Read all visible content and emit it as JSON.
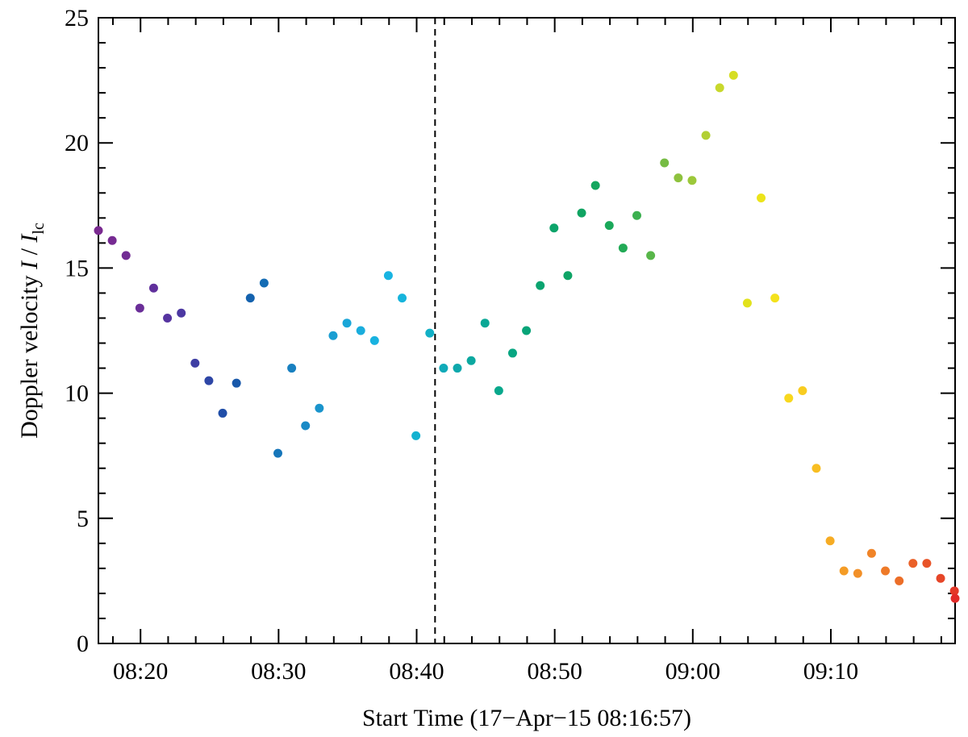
{
  "chart_data": {
    "type": "scatter",
    "xlabel": "Start Time (17−Apr−15 08:16:57)",
    "ylabel_prefix": "Doppler velocity",
    "ylabel_italic_a": "I",
    "ylabel_sep": " / ",
    "ylabel_italic_b": "I",
    "ylabel_sub": "lc",
    "xlim": [
      "08:16:57",
      "09:19:00"
    ],
    "ylim": [
      0,
      25
    ],
    "x_ticks": [
      "08:20",
      "08:30",
      "08:40",
      "08:50",
      "09:00",
      "09:10"
    ],
    "y_ticks": [
      0,
      5,
      10,
      15,
      20,
      25
    ],
    "grid": false,
    "marker_line_time": "08:41:20",
    "points": [
      {
        "t": "08:16:57",
        "y": 16.5,
        "color": "#7a2a90"
      },
      {
        "t": "08:17:57",
        "y": 16.1,
        "color": "#762a92"
      },
      {
        "t": "08:18:57",
        "y": 15.5,
        "color": "#722c94"
      },
      {
        "t": "08:19:57",
        "y": 13.4,
        "color": "#6a2e98"
      },
      {
        "t": "08:20:57",
        "y": 14.2,
        "color": "#60309c"
      },
      {
        "t": "08:21:57",
        "y": 13.0,
        "color": "#5634a0"
      },
      {
        "t": "08:22:57",
        "y": 13.2,
        "color": "#4c38a2"
      },
      {
        "t": "08:23:57",
        "y": 11.2,
        "color": "#3e3ea4"
      },
      {
        "t": "08:24:57",
        "y": 10.5,
        "color": "#2e46a6"
      },
      {
        "t": "08:25:57",
        "y": 9.2,
        "color": "#204ea8"
      },
      {
        "t": "08:26:57",
        "y": 10.4,
        "color": "#1858aa"
      },
      {
        "t": "08:27:57",
        "y": 13.8,
        "color": "#1462ae"
      },
      {
        "t": "08:28:57",
        "y": 14.4,
        "color": "#146cb4"
      },
      {
        "t": "08:29:57",
        "y": 7.6,
        "color": "#1676ba"
      },
      {
        "t": "08:30:57",
        "y": 11.0,
        "color": "#1880c0"
      },
      {
        "t": "08:31:57",
        "y": 8.7,
        "color": "#1a8ac6"
      },
      {
        "t": "08:32:57",
        "y": 9.4,
        "color": "#1a94cc"
      },
      {
        "t": "08:33:57",
        "y": 12.3,
        "color": "#1a9ed2"
      },
      {
        "t": "08:34:57",
        "y": 12.8,
        "color": "#1aa6d8"
      },
      {
        "t": "08:35:57",
        "y": 12.5,
        "color": "#1aaddd"
      },
      {
        "t": "08:36:57",
        "y": 12.1,
        "color": "#18b2e0"
      },
      {
        "t": "08:37:57",
        "y": 14.7,
        "color": "#18b4e2"
      },
      {
        "t": "08:38:57",
        "y": 13.8,
        "color": "#16b4dc"
      },
      {
        "t": "08:39:57",
        "y": 8.3,
        "color": "#14b2d0"
      },
      {
        "t": "08:40:57",
        "y": 12.4,
        "color": "#12b0c6"
      },
      {
        "t": "08:41:57",
        "y": 11.0,
        "color": "#10aab8"
      },
      {
        "t": "08:42:57",
        "y": 11.0,
        "color": "#0ea8ac"
      },
      {
        "t": "08:43:57",
        "y": 11.3,
        "color": "#0ca8a0"
      },
      {
        "t": "08:44:57",
        "y": 12.8,
        "color": "#0aa896"
      },
      {
        "t": "08:45:57",
        "y": 10.1,
        "color": "#08a88c"
      },
      {
        "t": "08:46:57",
        "y": 11.6,
        "color": "#08a682"
      },
      {
        "t": "08:47:57",
        "y": 12.5,
        "color": "#08a478"
      },
      {
        "t": "08:48:57",
        "y": 14.3,
        "color": "#0aa470"
      },
      {
        "t": "08:49:57",
        "y": 16.6,
        "color": "#0ca46a"
      },
      {
        "t": "08:50:57",
        "y": 14.7,
        "color": "#0ea466"
      },
      {
        "t": "08:51:57",
        "y": 17.2,
        "color": "#10a462"
      },
      {
        "t": "08:52:57",
        "y": 18.3,
        "color": "#14a65e"
      },
      {
        "t": "08:53:57",
        "y": 16.7,
        "color": "#1aa85a"
      },
      {
        "t": "08:54:57",
        "y": 15.8,
        "color": "#22aa56"
      },
      {
        "t": "08:55:57",
        "y": 17.1,
        "color": "#3cb050"
      },
      {
        "t": "08:56:57",
        "y": 15.5,
        "color": "#58b64a"
      },
      {
        "t": "08:57:57",
        "y": 19.2,
        "color": "#76bc44"
      },
      {
        "t": "08:58:57",
        "y": 18.6,
        "color": "#8ec23e"
      },
      {
        "t": "08:59:57",
        "y": 18.5,
        "color": "#9cc83a"
      },
      {
        "t": "09:00:57",
        "y": 20.3,
        "color": "#b2d034"
      },
      {
        "t": "09:01:57",
        "y": 22.2,
        "color": "#c8d82c"
      },
      {
        "t": "09:02:57",
        "y": 22.7,
        "color": "#d6de24"
      },
      {
        "t": "09:03:57",
        "y": 13.6,
        "color": "#e2e21c"
      },
      {
        "t": "09:04:57",
        "y": 17.8,
        "color": "#ece41a"
      },
      {
        "t": "09:05:57",
        "y": 13.8,
        "color": "#f4e21c"
      },
      {
        "t": "09:06:57",
        "y": 9.8,
        "color": "#f8d81e"
      },
      {
        "t": "09:07:57",
        "y": 10.1,
        "color": "#f8cc20"
      },
      {
        "t": "09:08:57",
        "y": 7.0,
        "color": "#f8be22"
      },
      {
        "t": "09:09:57",
        "y": 4.1,
        "color": "#f6ac24"
      },
      {
        "t": "09:10:57",
        "y": 2.9,
        "color": "#f49c26"
      },
      {
        "t": "09:11:57",
        "y": 2.8,
        "color": "#f29028"
      },
      {
        "t": "09:12:57",
        "y": 3.6,
        "color": "#f08428"
      },
      {
        "t": "09:13:57",
        "y": 2.9,
        "color": "#ee7a28"
      },
      {
        "t": "09:14:57",
        "y": 2.5,
        "color": "#ec6e28"
      },
      {
        "t": "09:15:57",
        "y": 3.2,
        "color": "#ea6028"
      },
      {
        "t": "09:16:57",
        "y": 3.2,
        "color": "#e85428"
      },
      {
        "t": "09:17:57",
        "y": 2.6,
        "color": "#e64628"
      },
      {
        "t": "09:18:57",
        "y": 2.1,
        "color": "#e43828"
      },
      {
        "t": "09:19:00",
        "y": 1.8,
        "color": "#e22a28"
      }
    ]
  }
}
